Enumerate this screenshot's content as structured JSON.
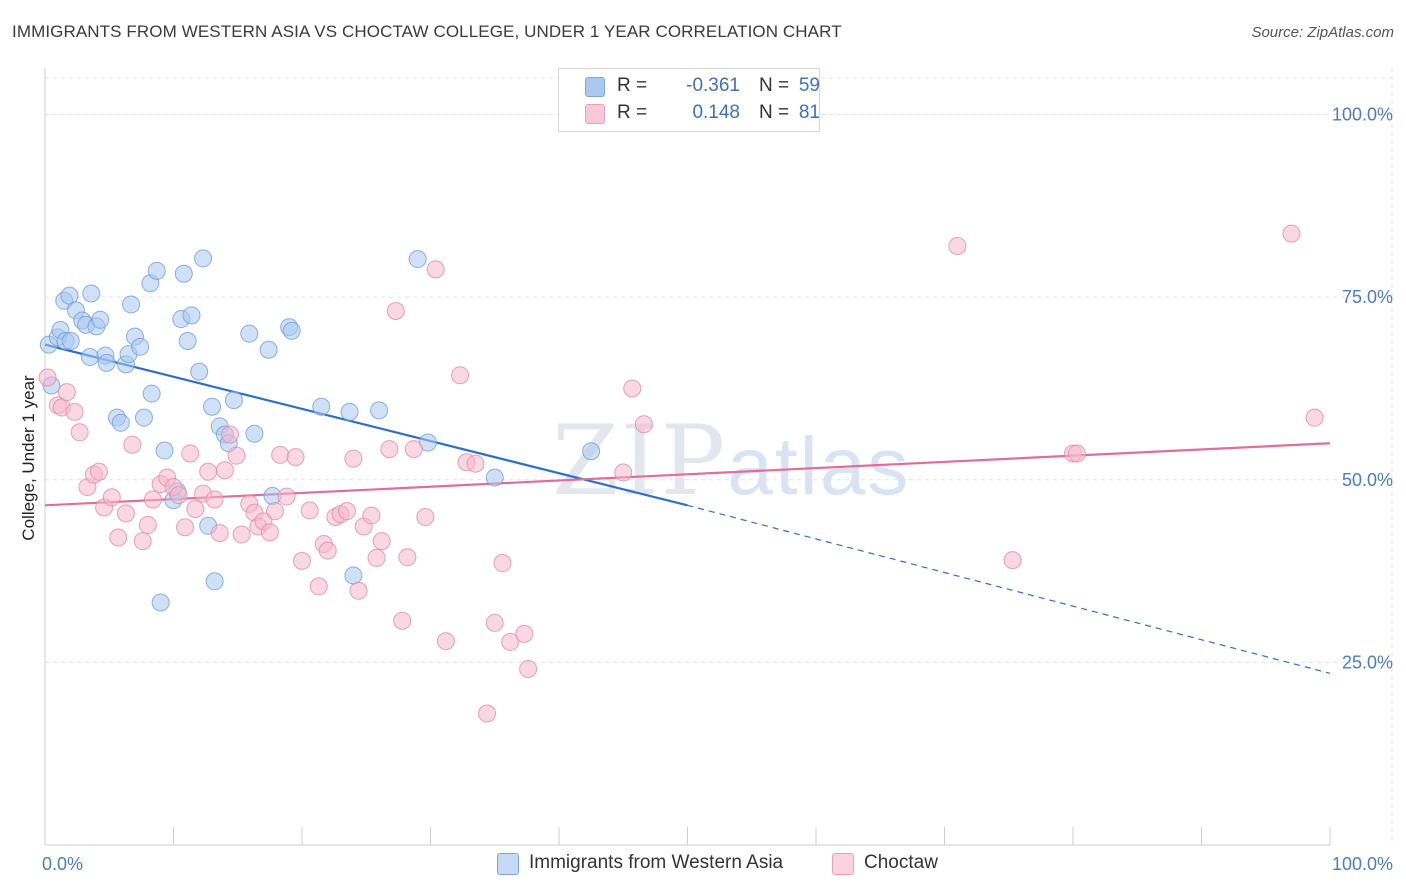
{
  "title": "IMMIGRANTS FROM WESTERN ASIA VS CHOCTAW COLLEGE, UNDER 1 YEAR CORRELATION CHART",
  "source": "Source: ZipAtlas.com",
  "watermark": {
    "zip": "ZIP",
    "atlas": "atlas"
  },
  "legend": {
    "r_label": "R =",
    "n_label": "N =",
    "rows": [
      {
        "r": "-0.361",
        "n": "59",
        "color": "#aac8f0"
      },
      {
        "r": "0.148",
        "n": "81",
        "color": "#f5b8cc"
      }
    ]
  },
  "bottom_legend": [
    {
      "label": "Immigrants from Western Asia",
      "color": "#aac8f0"
    },
    {
      "label": "Choctaw",
      "color": "#f5b8cc"
    }
  ],
  "chart_data": {
    "type": "scatter",
    "ylabel": "College, Under 1 year",
    "xlim": [
      0,
      100
    ],
    "ylim": [
      0,
      105
    ],
    "x_tick_labels": [
      "0.0%",
      "100.0%"
    ],
    "y_ticks": [
      {
        "value": 100,
        "label": "100.0%"
      },
      {
        "value": 75,
        "label": "75.0%"
      },
      {
        "value": 50,
        "label": "50.0%"
      },
      {
        "value": 25,
        "label": "25.0%"
      }
    ],
    "grid": true,
    "series": [
      {
        "name": "Immigrants from Western Asia",
        "color": "#aac8f0",
        "stroke": "#6f9fd8",
        "line_color": "#2f6fcc",
        "trend": {
          "x0": 0,
          "y0": 68.5,
          "x1": 50,
          "y1": 46.5,
          "x_dash_end": 100,
          "y_dash_end": 23.5
        },
        "points": [
          [
            0.3,
            68.5
          ],
          [
            1.0,
            69.5
          ],
          [
            1.2,
            70.5
          ],
          [
            1.6,
            69.0
          ],
          [
            1.5,
            74.5
          ],
          [
            1.9,
            75.2
          ],
          [
            2.4,
            73.2
          ],
          [
            2.9,
            71.8
          ],
          [
            3.6,
            75.5
          ],
          [
            3.2,
            71.2
          ],
          [
            4.0,
            71.0
          ],
          [
            4.3,
            71.9
          ],
          [
            3.5,
            66.8
          ],
          [
            4.7,
            67.0
          ],
          [
            4.8,
            66.0
          ],
          [
            5.6,
            58.5
          ],
          [
            5.9,
            57.8
          ],
          [
            6.3,
            65.8
          ],
          [
            6.5,
            67.2
          ],
          [
            6.7,
            74.0
          ],
          [
            7.0,
            69.6
          ],
          [
            7.4,
            68.2
          ],
          [
            7.7,
            58.5
          ],
          [
            8.2,
            76.9
          ],
          [
            8.3,
            61.8
          ],
          [
            8.7,
            78.6
          ],
          [
            9.0,
            33.2
          ],
          [
            9.3,
            54.0
          ],
          [
            10.0,
            47.2
          ],
          [
            10.3,
            48.4
          ],
          [
            10.6,
            72.0
          ],
          [
            10.8,
            78.2
          ],
          [
            11.1,
            69.0
          ],
          [
            11.4,
            72.5
          ],
          [
            12.0,
            64.8
          ],
          [
            12.3,
            80.3
          ],
          [
            12.7,
            43.7
          ],
          [
            13.0,
            60.0
          ],
          [
            13.2,
            36.1
          ],
          [
            13.6,
            57.3
          ],
          [
            14.0,
            56.2
          ],
          [
            14.3,
            55.0
          ],
          [
            14.7,
            60.9
          ],
          [
            15.9,
            70.0
          ],
          [
            16.3,
            56.3
          ],
          [
            17.4,
            67.8
          ],
          [
            17.7,
            47.8
          ],
          [
            19.0,
            70.9
          ],
          [
            19.2,
            70.4
          ],
          [
            21.5,
            60.0
          ],
          [
            23.7,
            59.3
          ],
          [
            24.0,
            36.9
          ],
          [
            26.0,
            59.5
          ],
          [
            29.0,
            80.2
          ],
          [
            29.8,
            55.1
          ],
          [
            35.0,
            50.3
          ],
          [
            42.5,
            53.9
          ],
          [
            0.5,
            62.9
          ],
          [
            2.0,
            69.0
          ]
        ]
      },
      {
        "name": "Choctaw",
        "color": "#f5b8cc",
        "stroke": "#e28aa8",
        "line_color": "#e06e98",
        "trend": {
          "x0": 0,
          "y0": 46.5,
          "x1": 100,
          "y1": 55.0
        },
        "points": [
          [
            0.2,
            64.0
          ],
          [
            1.0,
            60.2
          ],
          [
            1.3,
            59.9
          ],
          [
            1.7,
            62.0
          ],
          [
            2.3,
            59.3
          ],
          [
            2.7,
            56.5
          ],
          [
            3.3,
            49.0
          ],
          [
            3.8,
            50.7
          ],
          [
            4.2,
            51.1
          ],
          [
            4.6,
            46.2
          ],
          [
            5.2,
            47.6
          ],
          [
            5.7,
            42.1
          ],
          [
            6.3,
            45.4
          ],
          [
            6.8,
            54.8
          ],
          [
            7.6,
            41.6
          ],
          [
            8.0,
            43.8
          ],
          [
            8.4,
            47.3
          ],
          [
            9.0,
            49.4
          ],
          [
            9.5,
            50.3
          ],
          [
            10.0,
            49.0
          ],
          [
            10.4,
            47.9
          ],
          [
            10.9,
            43.5
          ],
          [
            11.3,
            53.6
          ],
          [
            11.7,
            46.0
          ],
          [
            12.3,
            48.1
          ],
          [
            12.7,
            51.1
          ],
          [
            13.2,
            47.3
          ],
          [
            13.6,
            42.7
          ],
          [
            14.0,
            51.3
          ],
          [
            14.4,
            56.2
          ],
          [
            14.9,
            53.3
          ],
          [
            15.3,
            42.5
          ],
          [
            15.9,
            46.7
          ],
          [
            16.3,
            45.5
          ],
          [
            16.6,
            43.6
          ],
          [
            17.0,
            44.3
          ],
          [
            17.5,
            42.8
          ],
          [
            17.9,
            45.7
          ],
          [
            18.3,
            53.4
          ],
          [
            18.8,
            47.7
          ],
          [
            19.5,
            53.1
          ],
          [
            20.0,
            38.9
          ],
          [
            20.6,
            45.8
          ],
          [
            21.3,
            35.4
          ],
          [
            21.7,
            41.2
          ],
          [
            22.0,
            40.3
          ],
          [
            22.6,
            44.9
          ],
          [
            23.0,
            45.3
          ],
          [
            23.5,
            45.7
          ],
          [
            24.0,
            52.9
          ],
          [
            24.4,
            34.8
          ],
          [
            24.8,
            43.6
          ],
          [
            25.4,
            45.1
          ],
          [
            25.8,
            39.3
          ],
          [
            26.2,
            41.6
          ],
          [
            26.8,
            54.2
          ],
          [
            27.3,
            73.1
          ],
          [
            27.8,
            30.7
          ],
          [
            28.2,
            39.4
          ],
          [
            28.7,
            54.2
          ],
          [
            29.6,
            44.9
          ],
          [
            30.4,
            78.8
          ],
          [
            31.2,
            27.9
          ],
          [
            32.3,
            64.3
          ],
          [
            32.8,
            52.4
          ],
          [
            33.5,
            52.2
          ],
          [
            34.4,
            18.0
          ],
          [
            35.0,
            30.4
          ],
          [
            35.6,
            38.6
          ],
          [
            36.2,
            27.8
          ],
          [
            37.3,
            28.9
          ],
          [
            37.6,
            24.1
          ],
          [
            45.0,
            51.0
          ],
          [
            45.7,
            62.5
          ],
          [
            46.6,
            57.6
          ],
          [
            71.0,
            82.0
          ],
          [
            75.3,
            39.0
          ],
          [
            80.0,
            53.6
          ],
          [
            80.3,
            53.6
          ],
          [
            97.0,
            83.7
          ],
          [
            98.8,
            58.5
          ]
        ]
      }
    ]
  }
}
